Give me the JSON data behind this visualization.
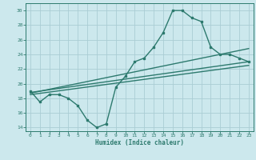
{
  "xlabel": "Humidex (Indice chaleur)",
  "background_color": "#cce8ed",
  "grid_color": "#aacdd4",
  "line_color": "#2d7a6e",
  "xlim": [
    -0.5,
    23.5
  ],
  "ylim": [
    13.5,
    31
  ],
  "xticks": [
    0,
    1,
    2,
    3,
    4,
    5,
    6,
    7,
    8,
    9,
    10,
    11,
    12,
    13,
    14,
    15,
    16,
    17,
    18,
    19,
    20,
    21,
    22,
    23
  ],
  "yticks": [
    14,
    16,
    18,
    20,
    22,
    24,
    26,
    28,
    30
  ],
  "main_x": [
    0,
    1,
    2,
    3,
    4,
    5,
    6,
    7,
    8,
    9,
    10,
    11,
    12,
    13,
    14,
    15,
    16,
    17,
    18,
    19,
    20,
    21,
    22,
    23
  ],
  "main_y": [
    19.0,
    17.5,
    18.5,
    18.5,
    18.0,
    17.0,
    15.0,
    14.0,
    14.5,
    19.5,
    21.0,
    23.0,
    23.5,
    25.0,
    27.0,
    30.0,
    30.0,
    29.0,
    28.5,
    25.0,
    24.0,
    24.0,
    23.5,
    23.0
  ],
  "line2_x": [
    0,
    23
  ],
  "line2_y": [
    18.8,
    23.0
  ],
  "line3_x": [
    0,
    23
  ],
  "line3_y": [
    18.5,
    22.5
  ],
  "line4_x": [
    0,
    23
  ],
  "line4_y": [
    18.7,
    24.8
  ]
}
